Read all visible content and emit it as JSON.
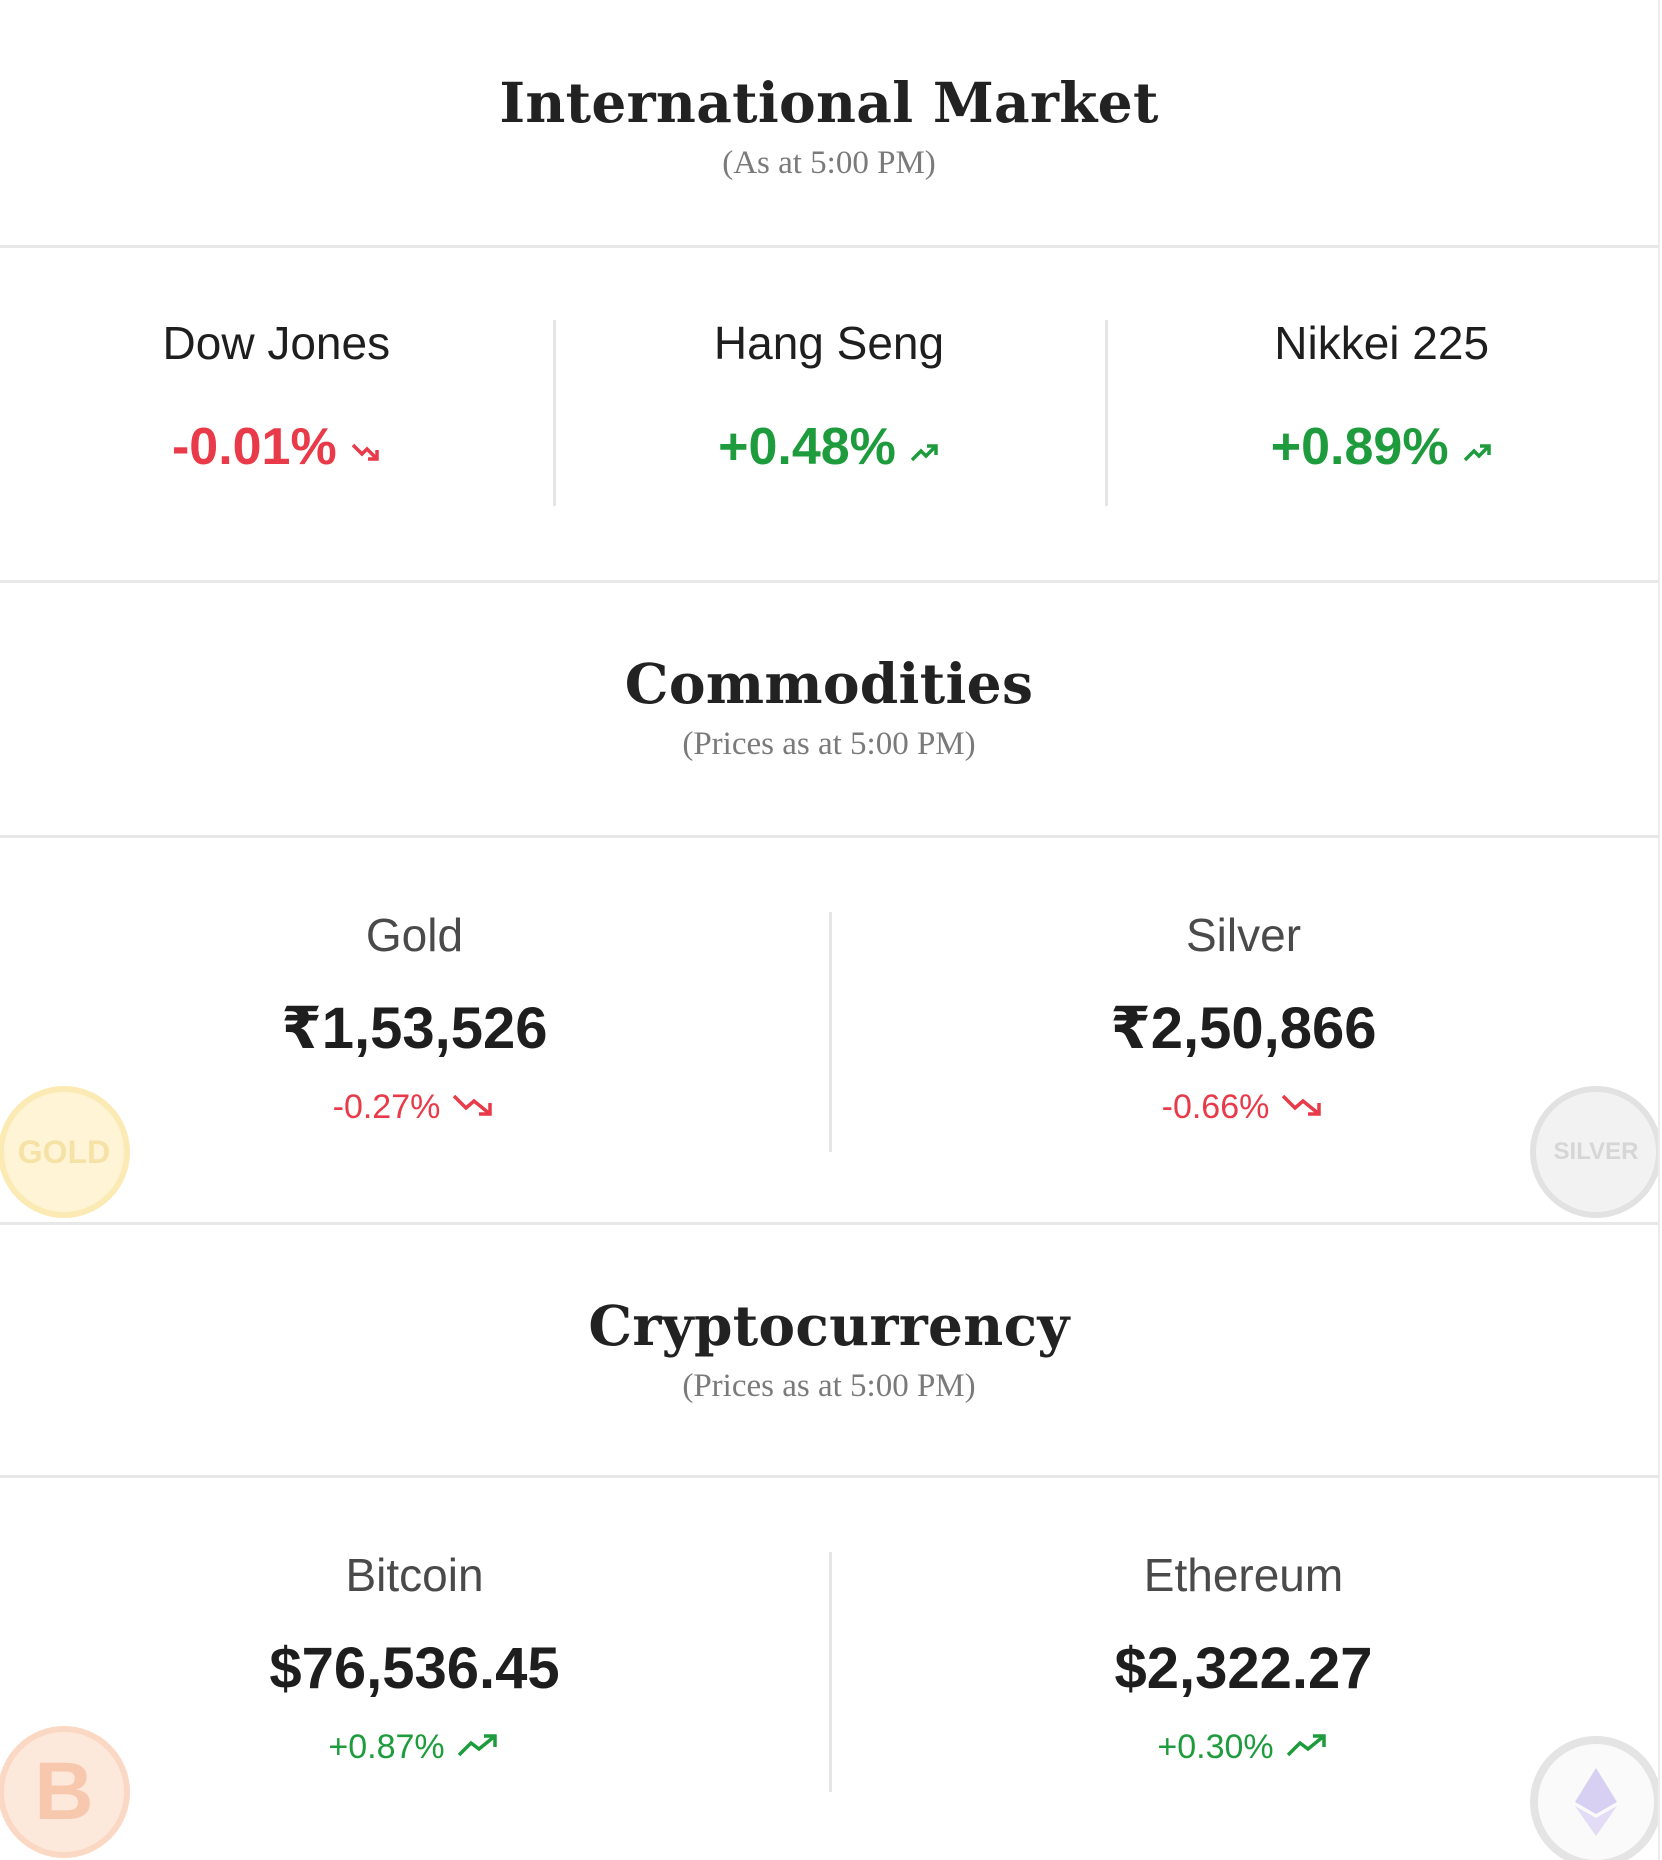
{
  "international": {
    "title": "International Market",
    "subtitle": "(As at 5:00 PM)",
    "indices": [
      {
        "name": "Dow Jones",
        "change": "-0.01%",
        "direction": "down"
      },
      {
        "name": "Hang Seng",
        "change": "+0.48%",
        "direction": "up"
      },
      {
        "name": "Nikkei 225",
        "change": "+0.89%",
        "direction": "up"
      }
    ]
  },
  "commodities": {
    "title": "Commodities",
    "subtitle": "(Prices as at 5:00 PM)",
    "items": [
      {
        "name": "Gold",
        "price": "₹1,53,526",
        "change": "-0.27%",
        "direction": "down",
        "coin_label": "GOLD"
      },
      {
        "name": "Silver",
        "price": "₹2,50,866",
        "change": "-0.66%",
        "direction": "down",
        "coin_label": "SILVER"
      }
    ]
  },
  "crypto": {
    "title": "Cryptocurrency",
    "subtitle": "(Prices as at 5:00 PM)",
    "items": [
      {
        "name": "Bitcoin",
        "price": "$76,536.45",
        "change": "+0.87%",
        "direction": "up",
        "coin_label": "B"
      },
      {
        "name": "Ethereum",
        "price": "$2,322.27",
        "change": "+0.30%",
        "direction": "up"
      }
    ]
  },
  "colors": {
    "up": "#1e9c3d",
    "down": "#e83a48",
    "divider": "#e8e8e8"
  },
  "icons": {
    "up": "trending-up-icon",
    "down": "trending-down-icon"
  }
}
